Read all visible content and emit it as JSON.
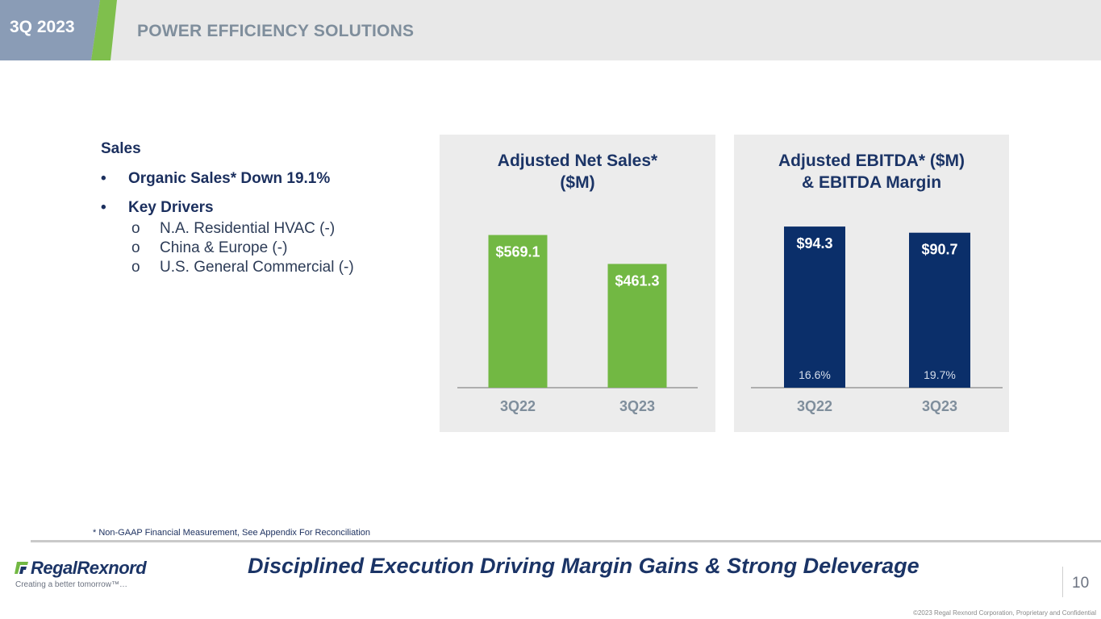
{
  "header": {
    "quarter": "3Q 2023",
    "title": "POWER EFFICIENCY SOLUTIONS"
  },
  "sales": {
    "heading": "Sales",
    "bullets": [
      "Organic Sales* Down 19.1%",
      "Key Drivers"
    ],
    "bullet_marker": "•",
    "sub_marker": "o",
    "drivers": [
      "N.A. Residential HVAC (-)",
      "China & Europe (-)",
      "U.S. General Commercial (-)"
    ]
  },
  "chart_data": [
    {
      "type": "bar",
      "title_lines": [
        "Adjusted Net Sales*",
        "($M)"
      ],
      "categories": [
        "3Q22",
        "3Q23"
      ],
      "values": [
        569.1,
        461.3
      ],
      "value_labels": [
        "$569.1",
        "$461.3"
      ],
      "ylim": [
        0,
        700
      ],
      "grid": false,
      "color": "#72b843"
    },
    {
      "type": "bar",
      "title_lines": [
        "Adjusted EBITDA* ($M)",
        "& EBITDA Margin"
      ],
      "categories": [
        "3Q22",
        "3Q23"
      ],
      "values": [
        94.3,
        90.7
      ],
      "value_labels": [
        "$94.3",
        "$90.7"
      ],
      "margins": [
        "16.6%",
        "19.7%"
      ],
      "ylim": [
        0,
        100
      ],
      "grid": false,
      "color": "#0b2f6a"
    }
  ],
  "footer": {
    "footnote": "* Non-GAAP Financial Measurement, See Appendix For Reconciliation",
    "logo_text": "RegalRexnord",
    "tagline": "Creating a better tomorrow™…",
    "takeaway": "Disciplined Execution Driving Margin Gains & Strong Deleverage",
    "page_number": "10",
    "copyright": "©2023 Regal Rexnord Corporation, Proprietary and Confidential"
  },
  "colors": {
    "navy": "#1b3466",
    "green": "#72b843",
    "panel": "#ececec",
    "axis_label": "#7f8e9c"
  }
}
